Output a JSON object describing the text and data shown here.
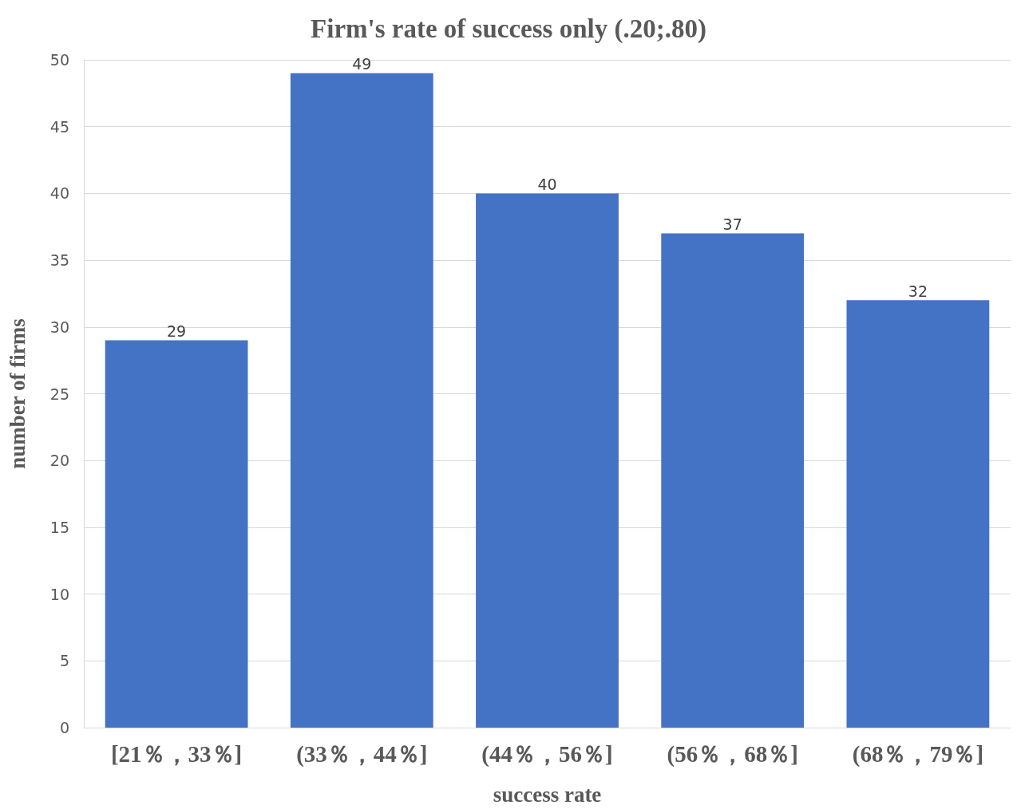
{
  "chart_data": {
    "type": "bar",
    "title": "Firm's rate of success only (.20;.80)",
    "xlabel": "success rate",
    "ylabel": "number of firms",
    "categories": [
      "[21％，33％]",
      "(33％，44％]",
      "(44％，56％]",
      "(56％，68％]",
      "(68％，79％]"
    ],
    "values": [
      29,
      49,
      40,
      37,
      32
    ],
    "color": "#4472c4",
    "ylim": [
      0,
      50
    ],
    "yticks": [
      0,
      5,
      10,
      15,
      20,
      25,
      30,
      35,
      40,
      45,
      50
    ],
    "grid": "y",
    "data_labels": true
  }
}
